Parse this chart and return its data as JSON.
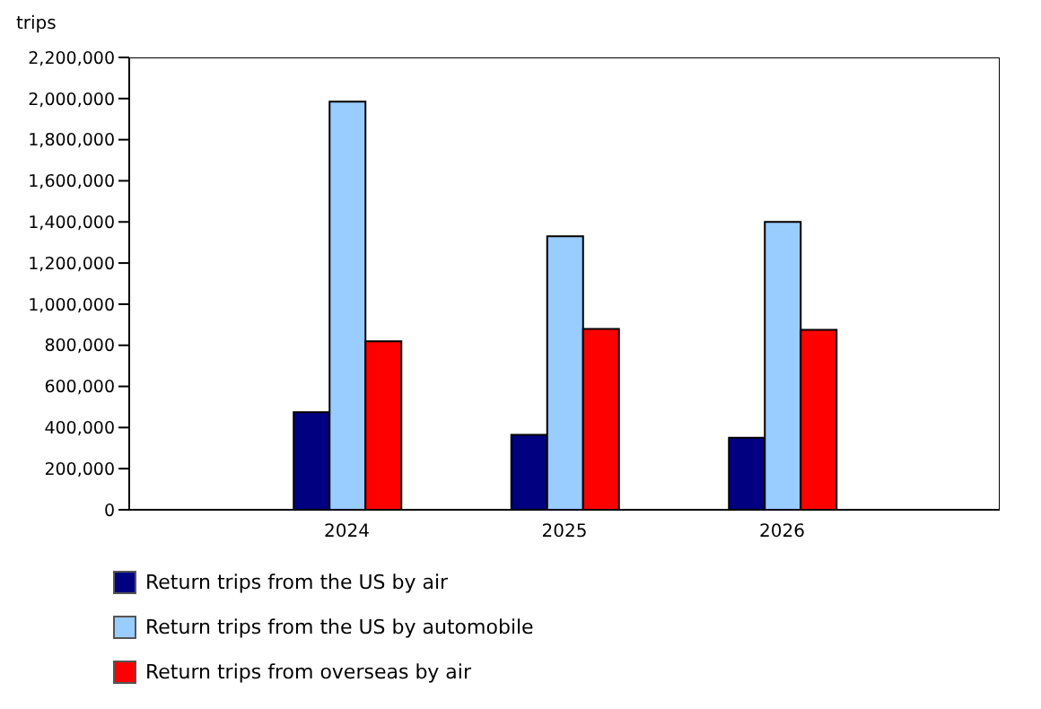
{
  "chart_data": {
    "type": "bar",
    "ylabel": "trips",
    "x": [
      2024,
      2025,
      2026
    ],
    "xlim": [
      2023,
      2027
    ],
    "xticks": [
      2024,
      2025,
      2026
    ],
    "series": [
      {
        "name": "Return trips from the US by air",
        "color": "#000080",
        "values": [
          475000,
          365000,
          350000
        ]
      },
      {
        "name": "Return trips from the US by automobile",
        "color": "#99ccff",
        "values": [
          1985000,
          1330000,
          1400000
        ]
      },
      {
        "name": "Return trips from overseas by air",
        "color": "#ff0000",
        "values": [
          820000,
          880000,
          875000
        ]
      }
    ],
    "ylim": [
      0,
      2200000
    ],
    "yticks": [
      0,
      {
        "value": 200000,
        "label": "200,000"
      },
      {
        "value": 400000,
        "label": "400,000"
      },
      {
        "value": 600000,
        "label": "600,000"
      },
      {
        "value": 800000,
        "label": "800,000"
      },
      {
        "value": 1000000,
        "label": "1,000,000"
      },
      {
        "value": 1200000,
        "label": "1,200,000"
      },
      {
        "value": 1400000,
        "label": "1,400,000"
      },
      {
        "value": 1600000,
        "label": "1,600,000"
      },
      {
        "value": 1800000,
        "label": "1,800,000"
      },
      {
        "value": 2000000,
        "label": "2,000,000"
      },
      {
        "value": 2200000,
        "label": "2,200,000"
      }
    ],
    "grid": false,
    "legend": "bottom"
  }
}
